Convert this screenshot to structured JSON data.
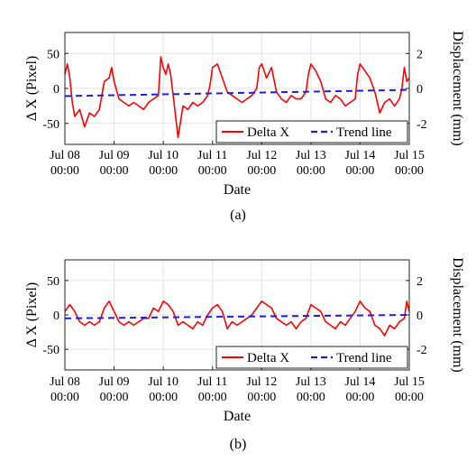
{
  "chart_data": [
    {
      "type": "line",
      "panel_label": "(a)",
      "xlabel": "Date",
      "ylabel_left": "Δ X (Pixel)",
      "ylabel_right": "Displacement (mm)",
      "x_ticks": [
        "Jul 08|00:00",
        "Jul 09|00:00",
        "Jul 10|00:00",
        "Jul 11|00:00",
        "Jul 12|00:00",
        "Jul 13|00:00",
        "Jul 14|00:00",
        "Jul 15|00:00"
      ],
      "xlim": [
        0,
        7
      ],
      "ylim_left": [
        -80,
        80
      ],
      "yticks_left": [
        "-50",
        "0",
        "50"
      ],
      "ylim_right": [
        -3.2,
        3.2
      ],
      "yticks_right": [
        "-2",
        "0",
        "2"
      ],
      "grid": true,
      "legend_position": "bottom-right",
      "series": [
        {
          "name": "Delta X",
          "color": "#ff0000",
          "style": "solid",
          "x": [
            0.0,
            0.05,
            0.1,
            0.15,
            0.2,
            0.3,
            0.4,
            0.5,
            0.6,
            0.7,
            0.8,
            0.9,
            0.95,
            1.0,
            1.1,
            1.2,
            1.3,
            1.4,
            1.5,
            1.6,
            1.7,
            1.8,
            1.9,
            1.95,
            2.0,
            2.05,
            2.1,
            2.15,
            2.2,
            2.3,
            2.4,
            2.5,
            2.6,
            2.7,
            2.8,
            2.9,
            2.95,
            3.0,
            3.1,
            3.2,
            3.3,
            3.4,
            3.5,
            3.6,
            3.7,
            3.8,
            3.9,
            3.95,
            4.0,
            4.1,
            4.2,
            4.3,
            4.4,
            4.5,
            4.6,
            4.7,
            4.8,
            4.9,
            4.95,
            5.0,
            5.1,
            5.2,
            5.3,
            5.4,
            5.5,
            5.6,
            5.7,
            5.8,
            5.9,
            5.95,
            6.0,
            6.1,
            6.2,
            6.3,
            6.4,
            6.5,
            6.6,
            6.7,
            6.8,
            6.85,
            6.9,
            6.95,
            7.0
          ],
          "y": [
            20,
            35,
            15,
            -20,
            -40,
            -30,
            -55,
            -35,
            -40,
            -30,
            10,
            15,
            30,
            10,
            -15,
            -20,
            -25,
            -20,
            -25,
            -30,
            -20,
            -15,
            -10,
            45,
            30,
            20,
            35,
            20,
            -10,
            -70,
            -25,
            -30,
            -20,
            -25,
            -20,
            -10,
            5,
            30,
            35,
            15,
            -5,
            -10,
            -15,
            -20,
            -15,
            -10,
            0,
            30,
            35,
            15,
            30,
            -5,
            -15,
            -20,
            -10,
            -15,
            -15,
            -5,
            20,
            35,
            25,
            10,
            -15,
            -20,
            -10,
            -15,
            -25,
            -20,
            -15,
            20,
            35,
            25,
            15,
            -5,
            -35,
            -20,
            -15,
            -25,
            -15,
            0,
            30,
            10,
            15
          ]
        },
        {
          "name": "Trend line",
          "color": "#1f1fd6",
          "style": "dashed",
          "x": [
            0,
            7
          ],
          "y": [
            -11,
            -2
          ]
        }
      ]
    },
    {
      "type": "line",
      "panel_label": "(b)",
      "xlabel": "Date",
      "ylabel_left": "Δ X (Pixel)",
      "ylabel_right": "Displacement (mm)",
      "x_ticks": [
        "Jul 08|00:00",
        "Jul 09|00:00",
        "Jul 10|00:00",
        "Jul 11|00:00",
        "Jul 12|00:00",
        "Jul 13|00:00",
        "Jul 14|00:00",
        "Jul 15|00:00"
      ],
      "xlim": [
        0,
        7
      ],
      "ylim_left": [
        -80,
        80
      ],
      "yticks_left": [
        "-50",
        "0",
        "50"
      ],
      "ylim_right": [
        -3.2,
        3.2
      ],
      "yticks_right": [
        "-2",
        "0",
        "2"
      ],
      "grid": true,
      "legend_position": "bottom-right",
      "series": [
        {
          "name": "Delta X",
          "color": "#ff0000",
          "style": "solid",
          "x": [
            0.0,
            0.1,
            0.2,
            0.3,
            0.4,
            0.5,
            0.6,
            0.7,
            0.8,
            0.9,
            1.0,
            1.1,
            1.2,
            1.3,
            1.4,
            1.5,
            1.6,
            1.7,
            1.8,
            1.9,
            2.0,
            2.1,
            2.2,
            2.3,
            2.4,
            2.5,
            2.6,
            2.7,
            2.8,
            2.9,
            3.0,
            3.1,
            3.2,
            3.3,
            3.4,
            3.5,
            3.6,
            3.7,
            3.8,
            3.9,
            4.0,
            4.1,
            4.2,
            4.3,
            4.4,
            4.5,
            4.6,
            4.7,
            4.8,
            4.9,
            5.0,
            5.1,
            5.2,
            5.3,
            5.4,
            5.5,
            5.6,
            5.7,
            5.8,
            5.9,
            6.0,
            6.1,
            6.2,
            6.3,
            6.4,
            6.5,
            6.6,
            6.7,
            6.8,
            6.9,
            6.95,
            7.0
          ],
          "y": [
            5,
            15,
            5,
            -10,
            -15,
            -10,
            -15,
            -10,
            10,
            20,
            5,
            -10,
            -15,
            -10,
            -15,
            -10,
            -5,
            -5,
            10,
            5,
            20,
            15,
            5,
            -15,
            -10,
            -15,
            -20,
            -10,
            -15,
            0,
            10,
            15,
            5,
            -20,
            -10,
            -15,
            -10,
            -5,
            0,
            10,
            20,
            15,
            10,
            -5,
            -10,
            -15,
            -10,
            -20,
            -10,
            -5,
            15,
            10,
            5,
            -10,
            -15,
            -20,
            -10,
            -15,
            -5,
            5,
            20,
            10,
            5,
            -15,
            -20,
            -30,
            -15,
            -20,
            -10,
            -5,
            20,
            5
          ]
        },
        {
          "name": "Trend line",
          "color": "#1f1fd6",
          "style": "dashed",
          "x": [
            0,
            7
          ],
          "y": [
            -5,
            0
          ]
        }
      ]
    }
  ]
}
